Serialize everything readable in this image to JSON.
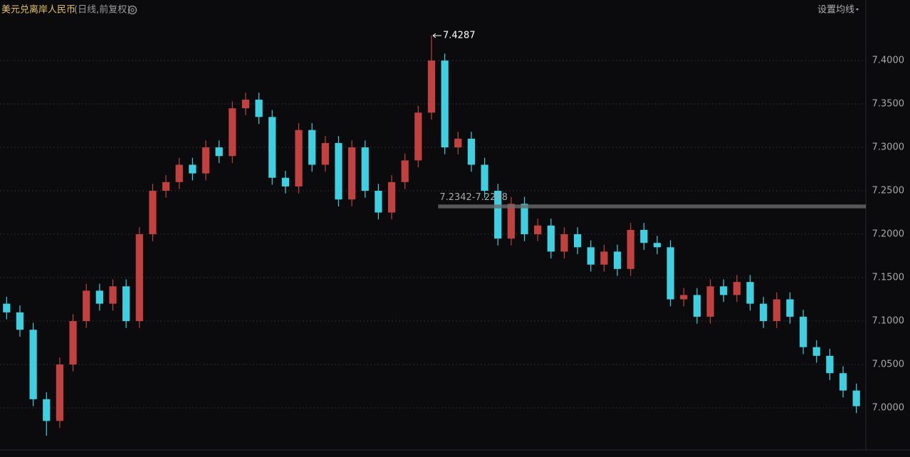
{
  "chart_data": {
    "type": "candlestick",
    "title": "美元兑离岸人民币",
    "subtitle": "(日线,前复权)",
    "menu_label": "设置均线",
    "open": [
      7.12,
      7.11,
      7.09,
      7.01,
      6.985,
      7.05,
      7.1,
      7.135,
      7.12,
      7.14,
      7.1,
      7.2,
      7.25,
      7.26,
      7.28,
      7.27,
      7.3,
      7.29,
      7.345,
      7.355,
      7.335,
      7.265,
      7.255,
      7.32,
      7.28,
      7.305,
      7.24,
      7.3,
      7.25,
      7.225,
      7.26,
      7.285,
      7.34,
      7.4,
      7.3,
      7.31,
      7.28,
      7.25,
      7.195,
      7.235,
      7.2,
      7.21,
      7.18,
      7.2,
      7.185,
      7.165,
      7.18,
      7.16,
      7.205,
      7.19,
      7.185,
      7.125,
      7.13,
      7.105,
      7.14,
      7.13,
      7.145,
      7.12,
      7.1,
      7.125,
      7.105,
      7.07,
      7.06,
      7.04,
      7.02
    ],
    "high": [
      7.128,
      7.118,
      7.098,
      7.018,
      7.058,
      7.108,
      7.143,
      7.143,
      7.148,
      7.148,
      7.208,
      7.258,
      7.268,
      7.288,
      7.288,
      7.308,
      7.308,
      7.353,
      7.363,
      7.363,
      7.343,
      7.273,
      7.328,
      7.328,
      7.313,
      7.313,
      7.308,
      7.308,
      7.258,
      7.268,
      7.293,
      7.348,
      7.4287,
      7.408,
      7.318,
      7.318,
      7.288,
      7.258,
      7.243,
      7.243,
      7.218,
      7.218,
      7.208,
      7.208,
      7.193,
      7.188,
      7.188,
      7.213,
      7.213,
      7.198,
      7.193,
      7.138,
      7.138,
      7.148,
      7.148,
      7.153,
      7.153,
      7.128,
      7.133,
      7.133,
      7.113,
      7.078,
      7.068,
      7.048,
      7.028
    ],
    "low": [
      7.102,
      7.082,
      7.002,
      6.968,
      6.977,
      7.042,
      7.092,
      7.112,
      7.112,
      7.092,
      7.092,
      7.192,
      7.242,
      7.252,
      7.262,
      7.262,
      7.282,
      7.282,
      7.337,
      7.327,
      7.257,
      7.247,
      7.247,
      7.272,
      7.272,
      7.232,
      7.232,
      7.242,
      7.217,
      7.217,
      7.252,
      7.277,
      7.332,
      7.292,
      7.292,
      7.272,
      7.242,
      7.187,
      7.187,
      7.192,
      7.192,
      7.172,
      7.172,
      7.177,
      7.157,
      7.157,
      7.152,
      7.152,
      7.182,
      7.177,
      7.117,
      7.117,
      7.097,
      7.097,
      7.122,
      7.122,
      7.112,
      7.092,
      7.092,
      7.097,
      7.062,
      7.052,
      7.032,
      7.012,
      6.994
    ],
    "close": [
      7.11,
      7.09,
      7.01,
      6.985,
      7.05,
      7.1,
      7.135,
      7.12,
      7.14,
      7.1,
      7.2,
      7.25,
      7.26,
      7.28,
      7.27,
      7.3,
      7.29,
      7.345,
      7.355,
      7.335,
      7.265,
      7.255,
      7.32,
      7.28,
      7.305,
      7.24,
      7.3,
      7.25,
      7.225,
      7.26,
      7.285,
      7.34,
      7.4,
      7.3,
      7.31,
      7.28,
      7.25,
      7.195,
      7.235,
      7.2,
      7.21,
      7.18,
      7.2,
      7.185,
      7.165,
      7.18,
      7.16,
      7.205,
      7.19,
      7.185,
      7.125,
      7.13,
      7.105,
      7.14,
      7.13,
      7.145,
      7.12,
      7.1,
      7.125,
      7.105,
      7.07,
      7.06,
      7.04,
      7.02,
      7.002
    ],
    "up_color": "#c0413f",
    "down_color": "#3fcfe0",
    "range_band": {
      "values": [
        7.2342,
        7.2298
      ],
      "label": "7.2342-7.2298"
    },
    "ylim": [
      6.9533,
      7.4697
    ],
    "yticks": [
      {
        "value": 7.0,
        "label": "7.0000"
      },
      {
        "value": 7.05,
        "label": "7.0500"
      },
      {
        "value": 7.1,
        "label": "7.1000"
      },
      {
        "value": 7.15,
        "label": "7.1500"
      },
      {
        "value": 7.2,
        "label": "7.2000"
      },
      {
        "value": 7.25,
        "label": "7.2500"
      },
      {
        "value": 7.3,
        "label": "7.3000"
      },
      {
        "value": 7.35,
        "label": "7.3500"
      },
      {
        "value": 7.4,
        "label": "7.4000"
      }
    ],
    "grid": true
  }
}
